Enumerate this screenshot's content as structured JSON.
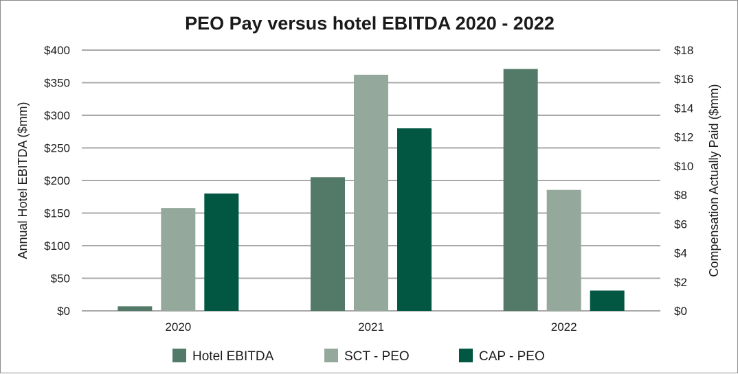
{
  "chart_data": {
    "type": "bar",
    "title": "PEO Pay versus hotel EBITDA 2020 - 2022",
    "categories": [
      "2020",
      "2021",
      "2022"
    ],
    "y_left": {
      "label": "Annual Hotel EBITDA ($mm)",
      "range": [
        0,
        400
      ],
      "ticks": [
        0,
        50,
        100,
        150,
        200,
        250,
        300,
        350,
        400
      ],
      "tick_labels": [
        "$0",
        "$50",
        "$100",
        "$150",
        "$200",
        "$250",
        "$300",
        "$350",
        "$400"
      ]
    },
    "y_right": {
      "label": "Compensation Actually Paid ($mm)",
      "range": [
        0,
        18
      ],
      "ticks": [
        0,
        2,
        4,
        6,
        8,
        10,
        12,
        14,
        16,
        18
      ],
      "tick_labels": [
        "$0",
        "$2",
        "$4",
        "$6",
        "$8",
        "$10",
        "$12",
        "$14",
        "$16",
        "$18"
      ]
    },
    "series": [
      {
        "name": "Hotel EBITDA",
        "axis": "left",
        "color": "#537a69",
        "values": [
          7,
          205,
          371
        ]
      },
      {
        "name": "SCT - PEO",
        "axis": "right",
        "color": "#95a89c",
        "values": [
          7.1,
          16.3,
          8.35
        ]
      },
      {
        "name": "CAP - PEO",
        "axis": "right",
        "color": "#015741",
        "values": [
          8.1,
          12.6,
          1.4
        ]
      }
    ],
    "grid": true,
    "legend_position": "bottom"
  }
}
